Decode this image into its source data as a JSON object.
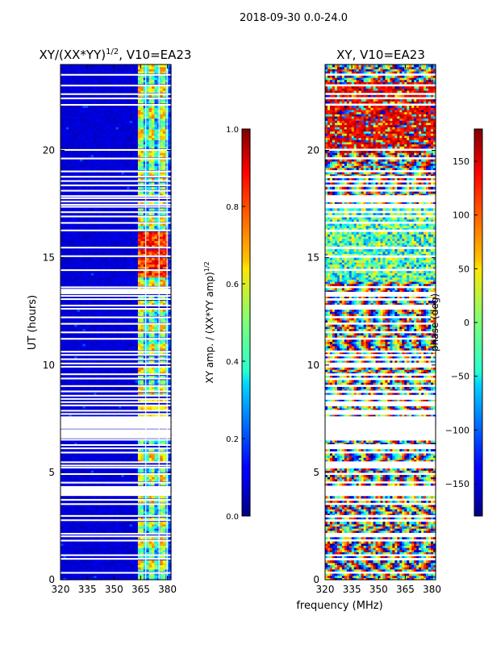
{
  "suptitle": "2018-09-30 0.0-24.0",
  "shared_xlabel": "frequency (MHz)",
  "chart_data": [
    {
      "type": "heatmap",
      "title": "XY/(XX*YY)^{1/2}, V10=EA23",
      "title_main": "XY/(XX*YY)",
      "title_sup": "1/2",
      "title_tail": ", V10=EA23",
      "xlabel": "",
      "ylabel": "UT (hours)",
      "xlim": [
        320,
        382
      ],
      "ylim": [
        0,
        24
      ],
      "xticks": [
        320,
        335,
        350,
        365,
        380
      ],
      "yticks": [
        0,
        5,
        10,
        15,
        20
      ],
      "colorbar": {
        "label": "XY amp. / (XX*YY amp)^{1/2}",
        "label_main": "XY amp. / (XX*YY amp)",
        "label_sup": "1/2",
        "range": [
          0.0,
          1.0
        ],
        "ticks": [
          "0.0",
          "0.2",
          "0.4",
          "0.6",
          "0.8",
          "1.0"
        ],
        "colormap": "jet"
      },
      "data_description": "low amplitude (~0.05) for 320-362 MHz, bright checkered blocks (0.3-0.9) for 362-382 MHz, highest (~0.9) around 14-16 UT"
    },
    {
      "type": "heatmap",
      "title": "XY, V10=EA23",
      "xlabel": "frequency (MHz)",
      "ylabel": "",
      "xlim": [
        320,
        382
      ],
      "ylim": [
        0,
        24
      ],
      "xticks": [
        320,
        335,
        350,
        365,
        380
      ],
      "yticks": [
        0,
        5,
        10,
        15,
        20
      ],
      "colorbar": {
        "label": "phase (deg)",
        "range": [
          -180,
          180
        ],
        "ticks": [
          "150",
          "100",
          "50",
          "0",
          "−50",
          "−100",
          "−150"
        ],
        "tick_values": [
          150,
          100,
          50,
          0,
          -50,
          -100,
          -150
        ],
        "colormap": "jet"
      },
      "data_description": "noisy phase wrapping across full -180..180 range"
    }
  ],
  "gap_hours": [
    0.3,
    0.95,
    1.12,
    1.8,
    2.0,
    2.12,
    2.75,
    2.95,
    3.5,
    3.7,
    3.95,
    4.05,
    4.3,
    4.5,
    4.9,
    5.2,
    5.3,
    5.45,
    5.9,
    6.1,
    6.25,
    6.5,
    6.6,
    6.8,
    6.95,
    7.05,
    7.25,
    7.4,
    7.55,
    7.7,
    7.85,
    8.1,
    8.25,
    8.4,
    8.55,
    8.75,
    9.0,
    9.35,
    9.55,
    9.9,
    10.05,
    10.25,
    10.45,
    10.6,
    11.2,
    11.5,
    11.9,
    12.2,
    12.6,
    12.75,
    13.05,
    13.2,
    13.35,
    13.6,
    14.4,
    15.05,
    15.45,
    16.25,
    16.6,
    16.9,
    17.1,
    17.35,
    17.45,
    17.6,
    17.75,
    17.85,
    18.1,
    18.35,
    18.55,
    18.75,
    19.0,
    19.6,
    20.0,
    22.1,
    22.4,
    22.6,
    23.0,
    23.5
  ]
}
